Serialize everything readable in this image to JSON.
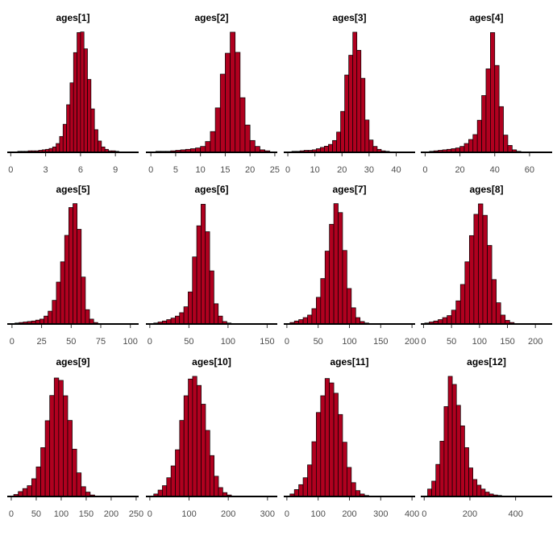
{
  "figure": {
    "bar_fill": "#b0001f",
    "bar_edge": "#000000",
    "axis_color": "#000000",
    "tick_color": "#4d4d4d",
    "background": "#ffffff"
  },
  "chart_data": [
    {
      "type": "bar",
      "title": "ages[1]",
      "xlim": [
        -0.3,
        11
      ],
      "xticks": [
        0,
        3,
        6,
        9
      ],
      "bin_start": 0.6,
      "bin_width": 0.3,
      "values": [
        0.8,
        0.8,
        0.8,
        1.2,
        1.2,
        1.2,
        1.6,
        2.0,
        2.4,
        3.1,
        4.3,
        7.0,
        12.6,
        22.3,
        37.8,
        55.2,
        79.2,
        95.1,
        95.6,
        82.2,
        57.9,
        34.5,
        18.0,
        9.0,
        4.3,
        2.4,
        1.2,
        1.2,
        0.8,
        0.4,
        0.4,
        0.4
      ]
    },
    {
      "type": "bar",
      "title": "ages[2]",
      "xlim": [
        -1,
        25.5
      ],
      "xticks": [
        0,
        5,
        10,
        15,
        20,
        25
      ],
      "bin_start": 1.0,
      "bin_width": 1.0,
      "values": [
        0.8,
        0.8,
        0.8,
        1.2,
        1.6,
        2.0,
        2.4,
        2.9,
        3.5,
        4.7,
        8.6,
        16.5,
        35.3,
        62.1,
        78.7,
        95.4,
        79.4,
        43.4,
        21.7,
        9.4,
        4.7,
        2.0,
        1.2,
        0.4
      ]
    },
    {
      "type": "bar",
      "title": "ages[3]",
      "xlim": [
        -1.5,
        47
      ],
      "xticks": [
        0,
        10,
        20,
        30,
        40
      ],
      "bin_start": 1.5,
      "bin_width": 1.5,
      "values": [
        0.8,
        0.8,
        1.2,
        1.6,
        1.6,
        2.0,
        2.9,
        3.9,
        4.9,
        6.3,
        9.4,
        16.1,
        32.5,
        61.4,
        77.1,
        95.4,
        81.0,
        58.8,
        25.7,
        9.8,
        4.7,
        2.4,
        1.2,
        0.8,
        0.4
      ]
    },
    {
      "type": "bar",
      "title": "ages[4]",
      "xlim": [
        -2.5,
        73
      ],
      "xticks": [
        0,
        20,
        40,
        60
      ],
      "bin_start": 2.5,
      "bin_width": 2.5,
      "values": [
        0.8,
        1.2,
        1.6,
        2.0,
        2.4,
        2.9,
        3.5,
        4.7,
        7.0,
        10.2,
        14.1,
        25.5,
        45.1,
        66.3,
        95.1,
        69.0,
        36.3,
        13.7,
        5.5,
        2.0,
        0.8,
        0.4
      ]
    },
    {
      "type": "bar",
      "title": "ages[5]",
      "xlim": [
        -4,
        107
      ],
      "xticks": [
        0,
        25,
        50,
        75,
        100
      ],
      "bin_start": 2.5,
      "bin_width": 3.5,
      "values": [
        0.8,
        1.2,
        1.6,
        2.0,
        2.4,
        3.1,
        3.9,
        6.3,
        10.2,
        18.8,
        33.3,
        49.4,
        70.4,
        92.5,
        95.6,
        75.2,
        37.3,
        11.4,
        3.9,
        1.2,
        0.4,
        0.4,
        0.4,
        0.4,
        0.4,
        0.4
      ]
    },
    {
      "type": "bar",
      "title": "ages[6]",
      "xlim": [
        -5,
        163
      ],
      "xticks": [
        0,
        50,
        100,
        150
      ],
      "bin_start": 5,
      "bin_width": 5.5,
      "values": [
        0.8,
        1.6,
        2.4,
        3.5,
        4.7,
        6.3,
        9.0,
        13.7,
        25.5,
        53.3,
        78.0,
        95.1,
        73.3,
        42.2,
        16.1,
        6.3,
        2.0,
        0.8,
        0.4,
        0.4
      ]
    },
    {
      "type": "bar",
      "title": "ages[7]",
      "xlim": [
        -5,
        205
      ],
      "xticks": [
        0,
        50,
        100,
        150,
        200
      ],
      "bin_start": 5,
      "bin_width": 7,
      "values": [
        1.2,
        2.4,
        3.5,
        5.1,
        7.1,
        12.2,
        21.2,
        36.1,
        57.9,
        79.2,
        95.6,
        88.5,
        58.4,
        28.2,
        12.9,
        5.1,
        2.0,
        0.8,
        0.4,
        0.4
      ]
    },
    {
      "type": "bar",
      "title": "ages[8]",
      "xlim": [
        -5,
        230
      ],
      "xticks": [
        0,
        50,
        100,
        150,
        200
      ],
      "bin_start": 2,
      "bin_width": 8,
      "values": [
        0.8,
        1.6,
        2.4,
        3.5,
        5.1,
        6.7,
        11.0,
        18.4,
        31.4,
        49.4,
        70.2,
        87.1,
        95.4,
        86.3,
        62.4,
        35.3,
        16.9,
        7.1,
        2.9,
        1.2,
        0.4,
        0.4,
        0.4,
        0.4
      ]
    },
    {
      "type": "bar",
      "title": "ages[9]",
      "xlim": [
        -8,
        255
      ],
      "xticks": [
        0,
        50,
        100,
        150,
        200,
        250
      ],
      "bin_start": 5,
      "bin_width": 9,
      "values": [
        1.6,
        3.9,
        6.3,
        8.6,
        14.1,
        23.5,
        38.8,
        60.2,
        80.2,
        94.1,
        92.2,
        80.0,
        60.4,
        37.6,
        18.8,
        7.8,
        3.5,
        1.2,
        0.4,
        0.4,
        0.4,
        0.4,
        0.4
      ]
    },
    {
      "type": "bar",
      "title": "ages[10]",
      "xlim": [
        -10,
        325
      ],
      "xticks": [
        0,
        100,
        200,
        300
      ],
      "bin_start": 10,
      "bin_width": 11,
      "values": [
        2.0,
        5.1,
        8.6,
        14.9,
        24.3,
        37.1,
        60.4,
        80.0,
        93.3,
        95.4,
        88.2,
        73.3,
        52.5,
        32.5,
        16.1,
        7.1,
        3.1,
        1.2,
        0.4,
        0.4,
        0.4,
        0.4
      ]
    },
    {
      "type": "bar",
      "title": "ages[11]",
      "xlim": [
        -10,
        410
      ],
      "xticks": [
        0,
        100,
        200,
        300,
        400
      ],
      "bin_start": 10,
      "bin_width": 14,
      "values": [
        2.0,
        5.5,
        9.4,
        14.9,
        25.1,
        43.5,
        66.7,
        80.0,
        93.7,
        90.2,
        82.0,
        65.1,
        43.1,
        23.1,
        11.0,
        4.7,
        2.0,
        0.8,
        0.4,
        0.4,
        0.4
      ]
    },
    {
      "type": "bar",
      "title": "ages[12]",
      "xlim": [
        -15,
        560
      ],
      "xticks": [
        0,
        200,
        400
      ],
      "bin_start": 15,
      "bin_width": 18,
      "values": [
        5.9,
        12.2,
        25.5,
        43.9,
        71.4,
        95.4,
        89.0,
        72.4,
        56.1,
        38.8,
        22.7,
        13.5,
        9.0,
        5.9,
        3.5,
        2.0,
        1.2,
        0.8,
        0.4,
        0.4
      ]
    }
  ]
}
